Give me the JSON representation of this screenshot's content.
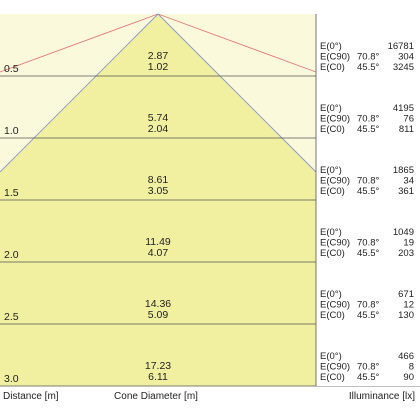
{
  "colors": {
    "cone_fill": "#f1f0a0",
    "outside_fill": "#fbf9dc",
    "cone_edge_red": "#e07a7a",
    "cone_edge_blue": "#8a95c8",
    "separator": "#555555",
    "side_panel": "#ffffff"
  },
  "rows": [
    {
      "distance": "0.5",
      "cone_diameter": "2.87",
      "cone_height": "1.02",
      "illuminance": [
        [
          "E(0°)",
          "",
          "16781"
        ],
        [
          "E(C90)",
          "70.8°",
          "304"
        ],
        [
          "E(C0)",
          "45.5°",
          "3245"
        ]
      ]
    },
    {
      "distance": "1.0",
      "cone_diameter": "5.74",
      "cone_height": "2.04",
      "illuminance": [
        [
          "E(0°)",
          "",
          "4195"
        ],
        [
          "E(C90)",
          "70.8°",
          "76"
        ],
        [
          "E(C0)",
          "45.5°",
          "811"
        ]
      ]
    },
    {
      "distance": "1.5",
      "cone_diameter": "8.61",
      "cone_height": "3.05",
      "illuminance": [
        [
          "E(0°)",
          "",
          "1865"
        ],
        [
          "E(C90)",
          "70.8°",
          "34"
        ],
        [
          "E(C0)",
          "45.5°",
          "361"
        ]
      ]
    },
    {
      "distance": "2.0",
      "cone_diameter": "11.49",
      "cone_height": "4.07",
      "illuminance": [
        [
          "E(0°)",
          "",
          "1049"
        ],
        [
          "E(C90)",
          "70.8°",
          "19"
        ],
        [
          "E(C0)",
          "45.5°",
          "203"
        ]
      ]
    },
    {
      "distance": "2.5",
      "cone_diameter": "14.36",
      "cone_height": "5.09",
      "illuminance": [
        [
          "E(0°)",
          "",
          "671"
        ],
        [
          "E(C90)",
          "70.8°",
          "12"
        ],
        [
          "E(C0)",
          "45.5°",
          "130"
        ]
      ]
    },
    {
      "distance": "3.0",
      "cone_diameter": "17.23",
      "cone_height": "6.11",
      "illuminance": [
        [
          "E(0°)",
          "",
          "466"
        ],
        [
          "E(C90)",
          "70.8°",
          "8"
        ],
        [
          "E(C0)",
          "45.5°",
          "90"
        ]
      ]
    }
  ],
  "footer": {
    "distance_label": "Distance [m]",
    "cone_label": "Cone Diameter [m]",
    "illuminance_label": "Illuminance [lx]"
  }
}
